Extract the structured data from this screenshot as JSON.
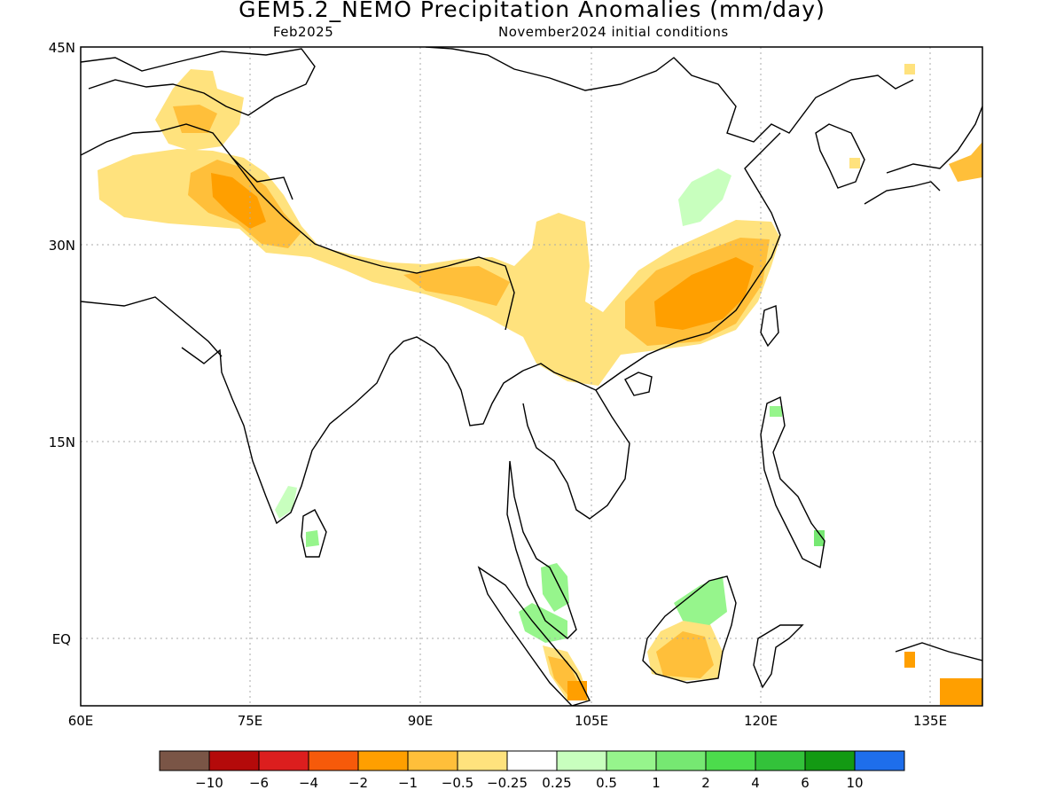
{
  "header": {
    "title": "GEM5.2_NEMO Precipitation Anomalies (mm/day)",
    "valid_month": "Feb2025",
    "init": "November2024 initial conditions"
  },
  "axes": {
    "lat_labels": [
      "45N",
      "30N",
      "15N",
      "EQ"
    ],
    "lon_labels": [
      "60E",
      "75E",
      "90E",
      "105E",
      "120E",
      "135E"
    ]
  },
  "legend": {
    "colors": [
      "#7a5546",
      "#b40a0a",
      "#dc1e1e",
      "#f65a0a",
      "#ff9f00",
      "#ffbf3a",
      "#ffe27d",
      "#ffffff",
      "#c8ffbe",
      "#96f58c",
      "#76e872",
      "#4cdc4c",
      "#33c23a",
      "#139a13",
      "#1e6eeb"
    ],
    "labels": [
      "-10",
      "-6",
      "-4",
      "-2",
      "-1",
      "-0.5",
      "-0.25",
      "0.25",
      "0.5",
      "1",
      "2",
      "4",
      "6",
      "10"
    ]
  },
  "colors": {
    "dry_light": "#ffe27d",
    "dry_mid": "#ffbf3a",
    "dry_strong": "#ff9f00",
    "wet_light": "#c8ffbe",
    "wet_mid": "#76e872"
  }
}
